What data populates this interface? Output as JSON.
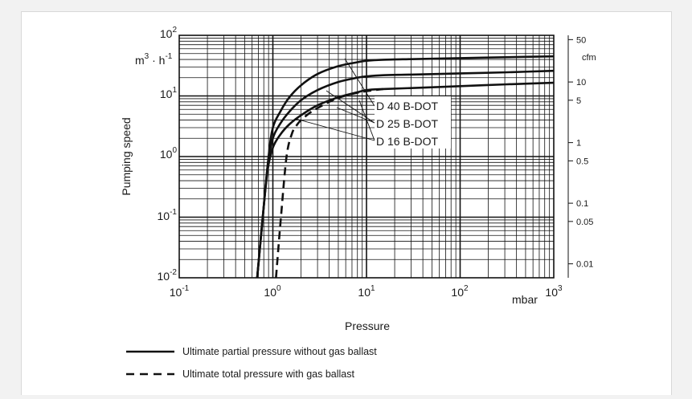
{
  "chart_data": {
    "type": "line",
    "xlabel": "Pressure",
    "x_unit": "mbar",
    "ylabel": "Pumping speed",
    "y_unit": "m³ · h⁻¹",
    "y2_unit": "cfm",
    "x_scale": "log",
    "y_scale": "log",
    "xlim": [
      0.1,
      1000
    ],
    "ylim": [
      0.01,
      100
    ],
    "grid": true,
    "x_ticks": [
      {
        "base": "10",
        "exp": "-1"
      },
      {
        "base": "10",
        "exp": "0"
      },
      {
        "base": "10",
        "exp": "1"
      },
      {
        "base": "10",
        "exp": "2"
      },
      {
        "base": "10",
        "exp": "3"
      }
    ],
    "y_ticks": [
      {
        "base": "10",
        "exp": "-2"
      },
      {
        "base": "10",
        "exp": "-1"
      },
      {
        "base": "10",
        "exp": "0"
      },
      {
        "base": "10",
        "exp": "1"
      },
      {
        "base": "10",
        "exp": "2"
      }
    ],
    "y2_ticks": [
      "50",
      "10",
      "5",
      "1",
      "0.5",
      "0.1",
      "0.05",
      "0.01"
    ],
    "series": [
      {
        "name": "D 40 B-DOT",
        "style": "solid",
        "x": [
          0.68,
          0.78,
          0.9,
          1.0,
          1.2,
          1.5,
          2,
          3,
          5,
          8,
          10,
          15,
          30,
          100,
          300,
          1000
        ],
        "y": [
          0.01,
          0.1,
          1.0,
          3.0,
          5.5,
          9.5,
          15,
          23,
          31,
          36,
          38,
          39.5,
          40.5,
          42,
          43.5,
          45
        ]
      },
      {
        "name": "D 25 B-DOT",
        "style": "solid",
        "x": [
          0.68,
          0.78,
          0.88,
          1.0,
          1.2,
          1.5,
          2,
          3,
          5,
          8,
          10,
          15,
          30,
          100,
          300,
          1000
        ],
        "y": [
          0.01,
          0.1,
          0.7,
          2.0,
          3.5,
          5.5,
          8.5,
          12.5,
          17,
          20,
          21,
          22,
          22.5,
          23.5,
          24.5,
          26
        ]
      },
      {
        "name": "D 16 B-DOT",
        "style": "solid",
        "x": [
          0.68,
          0.78,
          0.88,
          1.0,
          1.2,
          1.5,
          2,
          3,
          5,
          8,
          10,
          15,
          30,
          100,
          300,
          1000
        ],
        "y": [
          0.01,
          0.1,
          0.6,
          1.4,
          2.3,
          3.4,
          4.8,
          7,
          9.5,
          11.5,
          12.5,
          13,
          13.5,
          14.5,
          15.5,
          16.5
        ]
      },
      {
        "name": "D 16 B-DOT",
        "style": "dashed",
        "x": [
          1.08,
          1.22,
          1.4,
          1.6,
          1.8,
          2.0,
          2.5,
          3,
          4,
          5,
          7,
          10,
          15
        ],
        "y": [
          0.01,
          0.1,
          1.0,
          2.4,
          3.3,
          4.0,
          5.3,
          6.3,
          8,
          9.3,
          10.8,
          12.0,
          13.0
        ]
      }
    ],
    "annotations": [
      "D 40 B-DOT",
      "D 25 B-DOT",
      "D 16 B-DOT"
    ],
    "legend": {
      "placement": "bottom-left",
      "entries": [
        {
          "style": "solid",
          "label": "Ultimate partial pressure without gas ballast"
        },
        {
          "style": "dashed",
          "label": "Ultimate total pressure with gas ballast"
        }
      ]
    }
  }
}
